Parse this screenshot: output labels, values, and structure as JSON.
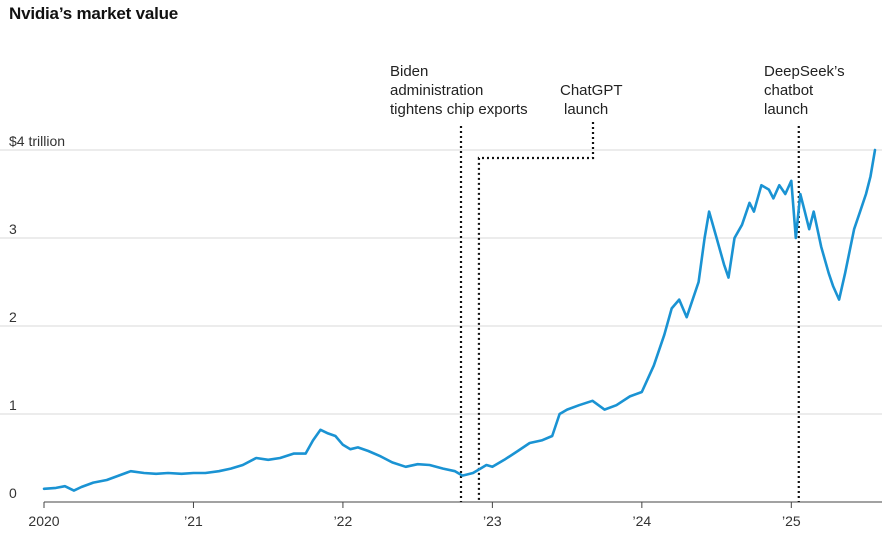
{
  "chart_data": {
    "type": "line",
    "title": "Nvidia’s market value",
    "xlabel": "",
    "ylabel": "",
    "units": "trillions of dollars",
    "xlim": [
      2020.0,
      2025.56
    ],
    "ylim": [
      0,
      4
    ],
    "grid": true,
    "y_ticks": [
      {
        "value": 0,
        "label": "0"
      },
      {
        "value": 1,
        "label": "1"
      },
      {
        "value": 2,
        "label": "2"
      },
      {
        "value": 3,
        "label": "3"
      },
      {
        "value": 4,
        "label": "$4 trillion"
      }
    ],
    "x_ticks": [
      {
        "value": 2020,
        "label": "2020"
      },
      {
        "value": 2021,
        "label": "’21"
      },
      {
        "value": 2022,
        "label": "’22"
      },
      {
        "value": 2023,
        "label": "’23"
      },
      {
        "value": 2024,
        "label": "’24"
      },
      {
        "value": 2025,
        "label": "’25"
      }
    ],
    "series": [
      {
        "name": "Nvidia market value",
        "color": "#1a93d3",
        "x": [
          2020.0,
          2020.08,
          2020.14,
          2020.2,
          2020.25,
          2020.33,
          2020.42,
          2020.5,
          2020.58,
          2020.67,
          2020.75,
          2020.83,
          2020.92,
          2021.0,
          2021.08,
          2021.17,
          2021.25,
          2021.33,
          2021.42,
          2021.5,
          2021.58,
          2021.67,
          2021.75,
          2021.8,
          2021.85,
          2021.9,
          2021.95,
          2022.0,
          2022.05,
          2022.1,
          2022.17,
          2022.25,
          2022.33,
          2022.42,
          2022.5,
          2022.58,
          2022.67,
          2022.75,
          2022.8,
          2022.87,
          2022.92,
          2022.96,
          2023.0,
          2023.08,
          2023.17,
          2023.25,
          2023.33,
          2023.4,
          2023.45,
          2023.5,
          2023.58,
          2023.67,
          2023.75,
          2023.83,
          2023.92,
          2024.0,
          2024.08,
          2024.15,
          2024.2,
          2024.25,
          2024.3,
          2024.38,
          2024.42,
          2024.45,
          2024.5,
          2024.55,
          2024.58,
          2024.62,
          2024.67,
          2024.72,
          2024.75,
          2024.8,
          2024.85,
          2024.88,
          2024.92,
          2024.96,
          2025.0,
          2025.03,
          2025.06,
          2025.09,
          2025.12,
          2025.15,
          2025.2,
          2025.25,
          2025.28,
          2025.32,
          2025.36,
          2025.42,
          2025.46,
          2025.5,
          2025.53,
          2025.56
        ],
        "y": [
          0.15,
          0.16,
          0.18,
          0.13,
          0.17,
          0.22,
          0.25,
          0.3,
          0.35,
          0.33,
          0.32,
          0.33,
          0.32,
          0.33,
          0.33,
          0.35,
          0.38,
          0.42,
          0.5,
          0.48,
          0.5,
          0.55,
          0.55,
          0.7,
          0.82,
          0.78,
          0.75,
          0.65,
          0.6,
          0.62,
          0.58,
          0.52,
          0.45,
          0.4,
          0.43,
          0.42,
          0.38,
          0.35,
          0.3,
          0.33,
          0.38,
          0.42,
          0.4,
          0.48,
          0.58,
          0.67,
          0.7,
          0.75,
          1.0,
          1.05,
          1.1,
          1.15,
          1.05,
          1.1,
          1.2,
          1.25,
          1.55,
          1.9,
          2.2,
          2.3,
          2.1,
          2.5,
          3.0,
          3.3,
          3.0,
          2.7,
          2.55,
          3.0,
          3.15,
          3.4,
          3.3,
          3.6,
          3.55,
          3.45,
          3.6,
          3.5,
          3.65,
          3.0,
          3.5,
          3.3,
          3.1,
          3.3,
          2.9,
          2.6,
          2.45,
          2.3,
          2.6,
          3.1,
          3.3,
          3.5,
          3.7,
          4.0
        ]
      }
    ],
    "annotations": [
      {
        "x": 2022.79,
        "lines": [
          "Biden",
          "administration",
          "tightens chip exports"
        ]
      },
      {
        "x": 2022.91,
        "lines": [
          "ChatGPT",
          "launch"
        ]
      },
      {
        "x": 2025.05,
        "lines": [
          "DeepSeek’s",
          "chatbot",
          "launch"
        ]
      }
    ]
  }
}
